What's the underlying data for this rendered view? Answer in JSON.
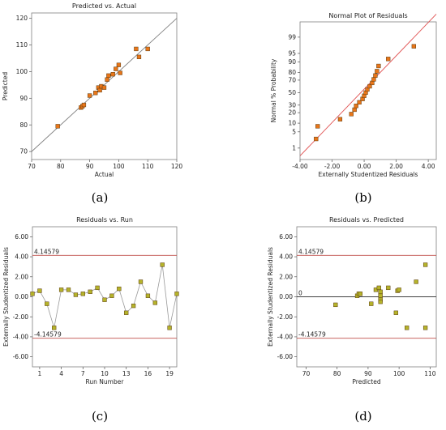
{
  "panel_labels": [
    "(a)",
    "(b)",
    "(c)",
    "(d)"
  ],
  "chart_data": [
    {
      "id": "a",
      "type": "scatter",
      "title": "Predicted vs. Actual",
      "xlabel": "Actual",
      "ylabel": "Predicted",
      "xlim": [
        70,
        120
      ],
      "ylim": [
        67,
        122
      ],
      "xticks": [
        70,
        80,
        90,
        100,
        110,
        120
      ],
      "yticks": [
        70,
        80,
        90,
        100,
        110,
        120
      ],
      "xtick_labels": [
        "70",
        "80",
        "90",
        "100",
        "110",
        "120"
      ],
      "ytick_labels": [
        "70",
        "80",
        "90",
        "100",
        "110",
        "120"
      ],
      "reference_line": {
        "from": [
          70,
          70
        ],
        "to": [
          120,
          120
        ],
        "color": "#808080"
      },
      "marker_color": "#e8761a",
      "points": [
        [
          79,
          79.5
        ],
        [
          87,
          86.5
        ],
        [
          87.5,
          87
        ],
        [
          88,
          87.5
        ],
        [
          90,
          91
        ],
        [
          92,
          92
        ],
        [
          93,
          94
        ],
        [
          93.5,
          93
        ],
        [
          94,
          94.5
        ],
        [
          95,
          94
        ],
        [
          96,
          97
        ],
        [
          96.5,
          98.5
        ],
        [
          98,
          99
        ],
        [
          99,
          101
        ],
        [
          100,
          102.5
        ],
        [
          100.5,
          99.5
        ],
        [
          106,
          108.5
        ],
        [
          107,
          105.5
        ],
        [
          110,
          108.5
        ]
      ]
    },
    {
      "id": "b",
      "type": "scatter",
      "title": "Normal Plot of Residuals",
      "xlabel": "Externally Studentized Residuals",
      "ylabel": "Normal % Probability",
      "xlim": [
        -4,
        4.5
      ],
      "xticks": [
        -4,
        -2,
        0,
        2,
        4
      ],
      "xtick_labels": [
        "-4.00",
        "-2.00",
        "0.00",
        "2.00",
        "4.00"
      ],
      "ytick_labels": [
        "1",
        "5",
        "10",
        "20",
        "30",
        "50",
        "70",
        "80",
        "90",
        "95",
        "99"
      ],
      "yticks_prob": [
        1,
        5,
        10,
        20,
        30,
        50,
        70,
        80,
        90,
        95,
        99
      ],
      "reference_line_color": "#e05050",
      "marker_color": "#e8761a",
      "points": [
        [
          -3.0,
          2.6
        ],
        [
          -2.9,
          7.9
        ],
        [
          -1.5,
          13.2
        ],
        [
          -0.8,
          18.4
        ],
        [
          -0.6,
          23.7
        ],
        [
          -0.5,
          28.9
        ],
        [
          -0.3,
          34.2
        ],
        [
          -0.1,
          39.5
        ],
        [
          0.0,
          44.7
        ],
        [
          0.1,
          50.0
        ],
        [
          0.2,
          55.3
        ],
        [
          0.35,
          60.5
        ],
        [
          0.5,
          65.8
        ],
        [
          0.6,
          71.1
        ],
        [
          0.7,
          76.3
        ],
        [
          0.8,
          81.6
        ],
        [
          0.9,
          86.8
        ],
        [
          1.5,
          92.1
        ],
        [
          3.1,
          97.4
        ]
      ]
    },
    {
      "id": "c",
      "type": "line",
      "title": "Residuals vs. Run",
      "xlabel": "Run Number",
      "ylabel": "Externally Studentized Residuals",
      "xlim": [
        0,
        20
      ],
      "ylim": [
        -7,
        7
      ],
      "xticks": [
        1,
        4,
        7,
        10,
        13,
        16,
        19
      ],
      "xtick_labels": [
        "1",
        "4",
        "7",
        "10",
        "13",
        "16",
        "19"
      ],
      "yticks": [
        -6,
        -4,
        -2,
        0,
        2,
        4,
        6
      ],
      "ytick_labels": [
        "-6.00",
        "-4.00",
        "-2.00",
        "0.00",
        "2.00",
        "4.00",
        "6.00"
      ],
      "ref_lines": [
        {
          "y": 4.14579,
          "label": "4.14579",
          "color": "#c0504d"
        },
        {
          "y": -4.14579,
          "label": "-4.14579",
          "color": "#c0504d"
        }
      ],
      "marker_color": "#b5b32a",
      "x": [
        0,
        1,
        2,
        3,
        4,
        5,
        6,
        7,
        8,
        9,
        10,
        11,
        12,
        13,
        14,
        15,
        16,
        17,
        18,
        19,
        20
      ],
      "values": [
        0.3,
        0.6,
        -0.7,
        -3.1,
        0.7,
        0.7,
        0.2,
        0.3,
        0.5,
        0.9,
        -0.3,
        0.1,
        0.8,
        -1.6,
        -0.9,
        1.5,
        0.1,
        -0.6,
        3.2,
        -3.1,
        0.3
      ]
    },
    {
      "id": "d",
      "type": "scatter",
      "title": "Residuals vs. Predicted",
      "xlabel": "Predicted",
      "ylabel": "Externally Studentized Residuals",
      "xlim": [
        67,
        112
      ],
      "ylim": [
        -7,
        7
      ],
      "xticks": [
        70,
        80,
        90,
        100,
        110
      ],
      "xtick_labels": [
        "70",
        "80",
        "90",
        "100",
        "110"
      ],
      "yticks": [
        -6,
        -4,
        -2,
        0,
        2,
        4,
        6
      ],
      "ytick_labels": [
        "-6.00",
        "-4.00",
        "-2.00",
        "0.00",
        "2.00",
        "4.00",
        "6.00"
      ],
      "ref_lines": [
        {
          "y": 4.14579,
          "label": "4.14579",
          "color": "#c0504d"
        },
        {
          "y": -4.14579,
          "label": "-4.14579",
          "color": "#c0504d"
        },
        {
          "y": 0,
          "label": "0",
          "color": "#404040"
        }
      ],
      "marker_color": "#b5b32a",
      "points": [
        [
          79.5,
          -0.8
        ],
        [
          86.5,
          0.1
        ],
        [
          87,
          0.3
        ],
        [
          87.5,
          0.3
        ],
        [
          91,
          -0.7
        ],
        [
          92.5,
          0.7
        ],
        [
          93.5,
          0.9
        ],
        [
          94,
          0.5
        ],
        [
          94,
          0.1
        ],
        [
          94,
          -0.3
        ],
        [
          94,
          -0.5
        ],
        [
          96.5,
          0.9
        ],
        [
          99,
          -1.6
        ],
        [
          99.5,
          0.6
        ],
        [
          100,
          0.7
        ],
        [
          102.5,
          -3.1
        ],
        [
          105.5,
          1.5
        ],
        [
          108.5,
          -3.1
        ],
        [
          108.5,
          3.2
        ]
      ]
    }
  ]
}
